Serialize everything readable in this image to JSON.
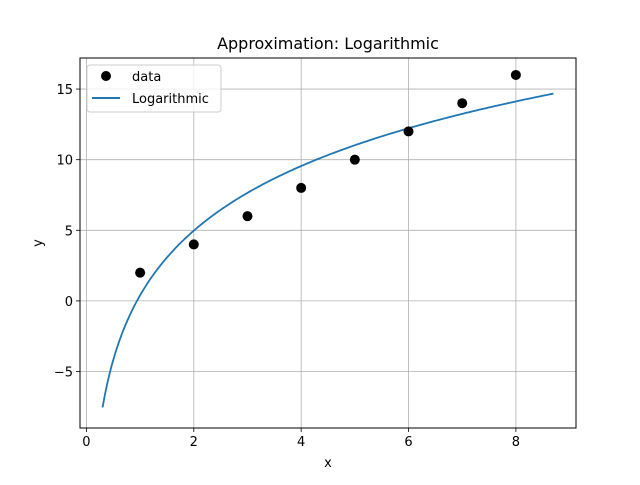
{
  "chart_data": {
    "type": "scatter",
    "title": "Approximation: Logarithmic",
    "xlabel": "x",
    "ylabel": "y",
    "xlim": [
      -0.12,
      9.12
    ],
    "ylim": [
      -9.0,
      17.2
    ],
    "xticks": [
      0,
      2,
      4,
      6,
      8
    ],
    "yticks": [
      -5,
      0,
      5,
      10,
      15
    ],
    "xtick_labels": [
      "0",
      "2",
      "4",
      "6",
      "8"
    ],
    "ytick_labels": [
      "−5",
      "0",
      "5",
      10,
      15
    ],
    "grid": true,
    "legend_position": "top-left",
    "series": [
      {
        "name": "data",
        "kind": "scatter",
        "color": "#000000",
        "x": [
          1,
          2,
          3,
          4,
          5,
          6,
          7,
          8
        ],
        "y": [
          2,
          4,
          6,
          8,
          10,
          12,
          14,
          16
        ]
      },
      {
        "name": "Logarithmic",
        "kind": "line",
        "color": "#1f77b4",
        "model": {
          "a": 0.4,
          "b": 6.6,
          "x_range": [
            0.3,
            8.7
          ]
        }
      }
    ]
  }
}
